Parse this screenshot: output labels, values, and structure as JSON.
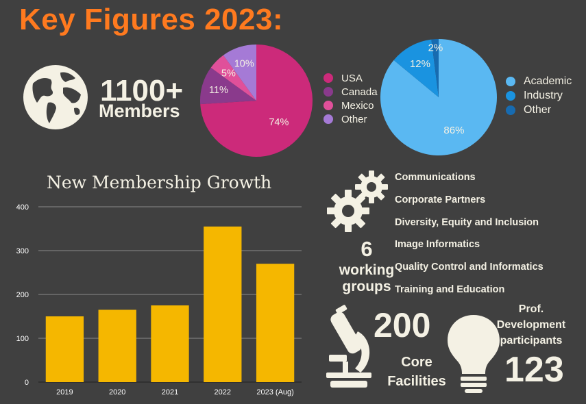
{
  "header": {
    "title": "Key Figures 2023:"
  },
  "members": {
    "count": "1100+",
    "label": "Members"
  },
  "colors": {
    "background": "#404040",
    "title": "#ff7a1f",
    "bar": "#f5b700",
    "cream": "#f4f1e4"
  },
  "icons": {
    "globe": "globe-icon",
    "gears": "gears-icon",
    "microscope": "microscope-icon",
    "lightbulb": "lightbulb-icon"
  },
  "working_groups": {
    "count": "6",
    "label": "working groups",
    "label_line1": "working",
    "label_line2": "groups",
    "items": [
      "Communications",
      "Corporate Partners",
      "Diversity, Equity and Inclusion",
      "Image Informatics",
      "Quality Control and Informatics",
      "Training and Education"
    ]
  },
  "core_facilities": {
    "count": "200",
    "label_line1": "Core",
    "label_line2": "Facilities"
  },
  "prof_dev": {
    "label_line1": "Prof.",
    "label_line2": "Development",
    "label_line3": "participants",
    "count": "123"
  },
  "chart_data": [
    {
      "type": "pie",
      "title": "",
      "categories": [
        "USA",
        "Canada",
        "Mexico",
        "Other"
      ],
      "values": [
        74,
        11,
        5,
        10
      ],
      "value_labels": [
        "74%",
        "11%",
        "5%",
        "10%"
      ],
      "colors": [
        "#cc2a7a",
        "#8a3a8c",
        "#e0509a",
        "#a57ad6"
      ],
      "legend": "right"
    },
    {
      "type": "pie",
      "title": "",
      "categories": [
        "Academic",
        "Industry",
        "Other"
      ],
      "values": [
        86,
        12,
        2
      ],
      "value_labels": [
        "86%",
        "12%",
        "2%"
      ],
      "colors": [
        "#5ab8f2",
        "#1a93e0",
        "#176bb0"
      ],
      "legend": "right"
    },
    {
      "type": "bar",
      "title": "New Membership Growth",
      "categories": [
        "2019",
        "2020",
        "2021",
        "2022",
        "2023 (Aug)"
      ],
      "values": [
        150,
        165,
        175,
        355,
        270
      ],
      "ylim": [
        0,
        400
      ],
      "yticks": [
        0,
        100,
        200,
        300,
        400
      ],
      "xlabel": "",
      "ylabel": "",
      "grid": true
    }
  ]
}
